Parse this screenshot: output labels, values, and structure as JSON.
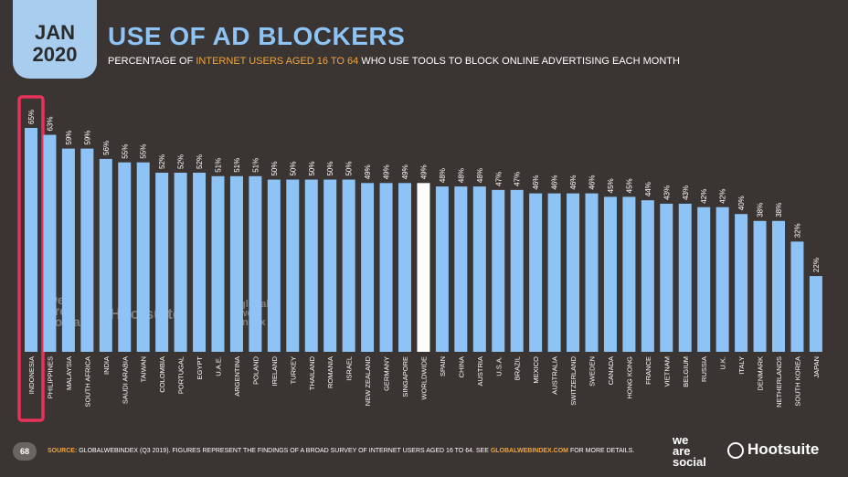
{
  "header": {
    "month": "JAN",
    "year": "2020",
    "title": "USE OF AD BLOCKERS",
    "subtitle_pre": "PERCENTAGE OF ",
    "subtitle_hl": "INTERNET USERS AGED 16 TO 64",
    "subtitle_post": " WHO USE TOOLS TO BLOCK ONLINE ADVERTISING EACH MONTH"
  },
  "footer": {
    "page_number": "68",
    "source_label": "SOURCE:",
    "source_text": " GLOBALWEBINDEX (Q3 2019). FIGURES REPRESENT THE FINDINGS OF A BROAD SURVEY OF INTERNET USERS AGED 16 TO 64. SEE ",
    "source_link": "GLOBALWEBINDEX.COM",
    "source_tail": " FOR MORE DETAILS."
  },
  "logos": {
    "we_are_social": [
      "we",
      "are",
      "social"
    ],
    "hootsuite": "Hootsuite"
  },
  "colors": {
    "background": "#3a3532",
    "bar": "#8dc3f5",
    "bar_highlight": "#ffffff",
    "highlight_border": "#e8325a",
    "accent": "#f0a43a"
  },
  "chart_data": {
    "type": "bar",
    "title": "USE OF AD BLOCKERS",
    "ylabel": "",
    "xlabel": "",
    "ylim": [
      0,
      70
    ],
    "highlight_category": "INDONESIA",
    "white_category": "WORLDWIDE",
    "categories": [
      "INDONESIA",
      "PHILIPPINES",
      "MALAYSIA",
      "SOUTH AFRICA",
      "INDIA",
      "SAUDI ARABIA",
      "TAIWAN",
      "COLOMBIA",
      "PORTUGAL",
      "EGYPT",
      "U.A.E.",
      "ARGENTINA",
      "POLAND",
      "IRELAND",
      "TURKEY",
      "THAILAND",
      "ROMANIA",
      "ISRAEL",
      "NEW ZEALAND",
      "GERMANY",
      "SINGAPORE",
      "WORLDWIDE",
      "SPAIN",
      "CHINA",
      "AUSTRIA",
      "U.S.A.",
      "BRAZIL",
      "MEXICO",
      "AUSTRALIA",
      "SWITZERLAND",
      "SWEDEN",
      "CANADA",
      "HONG KONG",
      "FRANCE",
      "VIETNAM",
      "BELGIUM",
      "RUSSIA",
      "U.K.",
      "ITALY",
      "DENMARK",
      "NETHERLANDS",
      "SOUTH KOREA",
      "JAPAN"
    ],
    "values": [
      65,
      63,
      59,
      59,
      56,
      55,
      55,
      52,
      52,
      52,
      51,
      51,
      51,
      50,
      50,
      50,
      50,
      50,
      49,
      49,
      49,
      49,
      48,
      48,
      48,
      47,
      47,
      46,
      46,
      46,
      46,
      45,
      45,
      44,
      43,
      43,
      42,
      42,
      40,
      38,
      38,
      32,
      22
    ],
    "labels": [
      "65%",
      "63%",
      "59%",
      "59%",
      "56%",
      "55%",
      "55%",
      "52%",
      "52%",
      "52%",
      "51%",
      "51%",
      "51%",
      "50%",
      "50%",
      "50%",
      "50%",
      "50%",
      "49%",
      "49%",
      "49%",
      "49%",
      "48%",
      "48%",
      "48%",
      "47%",
      "47%",
      "46%",
      "46%",
      "46%",
      "46%",
      "45%",
      "45%",
      "44%",
      "43%",
      "43%",
      "42%",
      "42%",
      "40%",
      "38%",
      "38%",
      "32%",
      "22%"
    ]
  }
}
